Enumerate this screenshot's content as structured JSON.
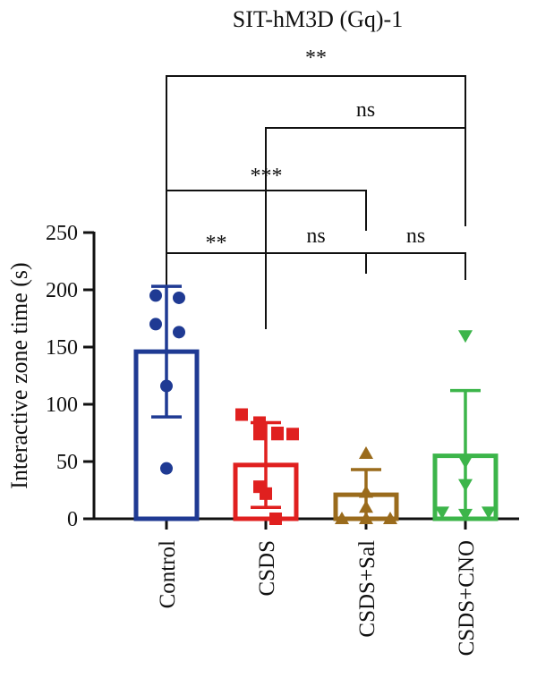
{
  "chart_data": {
    "type": "bar",
    "title": "SIT-hM3D (Gq)-1",
    "ylabel": "Interactive zone time (s)",
    "xlabel": "",
    "ylim": [
      0,
      250
    ],
    "yticks": [
      0,
      50,
      100,
      150,
      200,
      250
    ],
    "categories": [
      "Control",
      "CSDS",
      "CSDS+Sal",
      "CSDS+CNO"
    ],
    "series": [
      {
        "values": [
          146,
          47,
          21,
          55
        ],
        "error": [
          57,
          37,
          22,
          57
        ],
        "colors": [
          "#1f3a93",
          "#e0201f",
          "#9a6b1c",
          "#3cb54a"
        ],
        "markers": [
          "circle",
          "square",
          "triangle-up",
          "triangle-down"
        ]
      }
    ],
    "points": [
      [
        195,
        193,
        170,
        163,
        116,
        44
      ],
      [
        91,
        84,
        75,
        74,
        74,
        74,
        28,
        22,
        0
      ],
      [
        57,
        23,
        10,
        0,
        0,
        0
      ],
      [
        160,
        50,
        30,
        6,
        6,
        4
      ]
    ],
    "comparisons": [
      {
        "from": 0,
        "to": 3,
        "label": "**"
      },
      {
        "from": 1,
        "to": 3,
        "label": "ns"
      },
      {
        "from": 0,
        "to": 2,
        "label": "***"
      },
      {
        "from": 0,
        "to": 1,
        "label": "**"
      },
      {
        "from": 1,
        "to": 2,
        "label": "ns"
      },
      {
        "from": 2,
        "to": 3,
        "label": "ns"
      }
    ]
  }
}
